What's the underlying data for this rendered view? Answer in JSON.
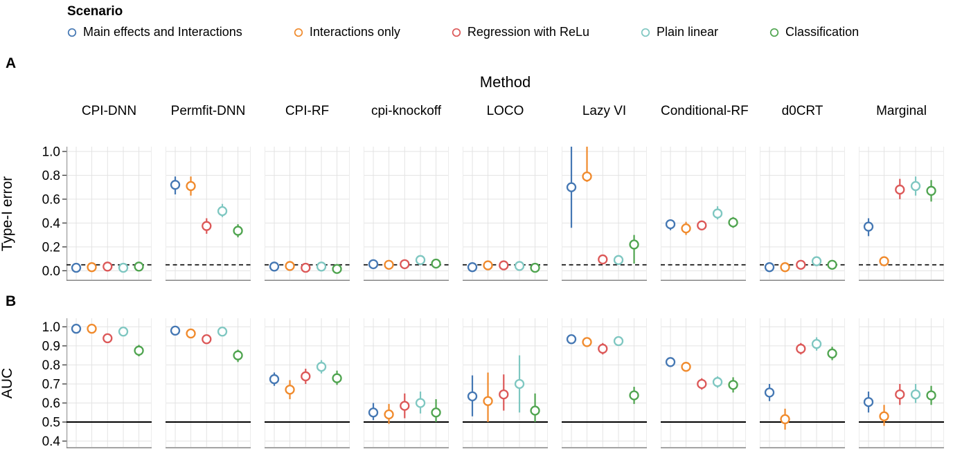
{
  "legend": {
    "title": "Scenario",
    "items": [
      {
        "label": "Main effects and Interactions",
        "color": "#4477b3"
      },
      {
        "label": "Interactions only",
        "color": "#f08a2c"
      },
      {
        "label": "Regression with ReLu",
        "color": "#dc5858"
      },
      {
        "label": "Plain linear",
        "color": "#7ec7c1"
      },
      {
        "label": "Classification",
        "color": "#4fa44f"
      }
    ]
  },
  "labels": {
    "panel_a": "A",
    "panel_b": "B",
    "method_title": "Method"
  },
  "chart_data": {
    "type": "scatter",
    "note": "Open-circle point estimates with vertical error bars; values are [value, low, high]",
    "methods": [
      "CPI-DNN",
      "Permfit-DNN",
      "CPI-RF",
      "cpi-knockoff",
      "LOCO",
      "Lazy VI",
      "Conditional-RF",
      "d0CRT",
      "Marginal"
    ],
    "scenarios": [
      {
        "name": "Main effects and Interactions",
        "color": "#4477b3"
      },
      {
        "name": "Interactions only",
        "color": "#f08a2c"
      },
      {
        "name": "Regression with ReLu",
        "color": "#dc5858"
      },
      {
        "name": "Plain linear",
        "color": "#7ec7c1"
      },
      {
        "name": "Classification",
        "color": "#4fa44f"
      }
    ],
    "rows": [
      {
        "id": "A",
        "ylabel": "Type-I error",
        "yticks": [
          1.0,
          0.8,
          0.6,
          0.4,
          0.2,
          0.0
        ],
        "ylim": [
          -0.085,
          1.04
        ],
        "refline": {
          "y": 0.05,
          "style": "dashed",
          "color": "#111111"
        },
        "values": [
          [
            [
              0.025,
              0.01,
              0.04
            ],
            [
              0.03,
              0.015,
              0.045
            ],
            [
              0.035,
              0.02,
              0.05
            ],
            [
              0.025,
              0.01,
              0.04
            ],
            [
              0.035,
              0.02,
              0.05
            ]
          ],
          [
            [
              0.72,
              0.64,
              0.79
            ],
            [
              0.71,
              0.63,
              0.79
            ],
            [
              0.375,
              0.31,
              0.44
            ],
            [
              0.5,
              0.45,
              0.56
            ],
            [
              0.335,
              0.28,
              0.39
            ]
          ],
          [
            [
              0.035,
              0.02,
              0.05
            ],
            [
              0.04,
              0.025,
              0.055
            ],
            [
              0.025,
              0.01,
              0.04
            ],
            [
              0.035,
              0.02,
              0.05
            ],
            [
              0.015,
              0.005,
              0.03
            ]
          ],
          [
            [
              0.055,
              0.04,
              0.07
            ],
            [
              0.05,
              0.035,
              0.065
            ],
            [
              0.055,
              0.04,
              0.075
            ],
            [
              0.09,
              0.07,
              0.11
            ],
            [
              0.06,
              0.045,
              0.08
            ]
          ],
          [
            [
              0.03,
              0.015,
              0.045
            ],
            [
              0.045,
              0.03,
              0.06
            ],
            [
              0.045,
              0.03,
              0.065
            ],
            [
              0.04,
              0.025,
              0.055
            ],
            [
              0.025,
              0.01,
              0.04
            ]
          ],
          [
            [
              0.7,
              0.36,
              1.1
            ],
            [
              0.79,
              0.745,
              1.1
            ],
            [
              0.095,
              0.06,
              0.13
            ],
            [
              0.09,
              0.06,
              0.12
            ],
            [
              0.22,
              0.06,
              0.3
            ]
          ],
          [
            [
              0.39,
              0.34,
              0.43
            ],
            [
              0.355,
              0.3,
              0.41
            ],
            [
              0.38,
              0.34,
              0.42
            ],
            [
              0.48,
              0.43,
              0.54
            ],
            [
              0.405,
              0.36,
              0.45
            ]
          ],
          [
            [
              0.03,
              0.015,
              0.045
            ],
            [
              0.03,
              0.015,
              0.045
            ],
            [
              0.05,
              0.035,
              0.065
            ],
            [
              0.08,
              0.06,
              0.1
            ],
            [
              0.05,
              0.035,
              0.065
            ]
          ],
          [
            [
              0.37,
              0.29,
              0.44
            ],
            [
              0.08,
              0.06,
              0.1
            ],
            [
              0.68,
              0.6,
              0.77
            ],
            [
              0.71,
              0.63,
              0.79
            ],
            [
              0.67,
              0.58,
              0.76
            ]
          ]
        ]
      },
      {
        "id": "B",
        "ylabel": "AUC",
        "yticks": [
          1.0,
          0.9,
          0.8,
          0.7,
          0.6,
          0.5,
          0.4
        ],
        "ylim": [
          0.362,
          1.045
        ],
        "refline": {
          "y": 0.5,
          "style": "solid",
          "color": "#000000"
        },
        "values": [
          [
            [
              0.99,
              0.98,
              1.0
            ],
            [
              0.99,
              0.975,
              1.0
            ],
            [
              0.94,
              0.92,
              0.96
            ],
            [
              0.975,
              0.96,
              0.99
            ],
            [
              0.875,
              0.845,
              0.905
            ]
          ],
          [
            [
              0.98,
              0.97,
              0.99
            ],
            [
              0.965,
              0.95,
              0.98
            ],
            [
              0.935,
              0.915,
              0.955
            ],
            [
              0.975,
              0.965,
              0.985
            ],
            [
              0.85,
              0.815,
              0.88
            ]
          ],
          [
            [
              0.725,
              0.69,
              0.76
            ],
            [
              0.67,
              0.62,
              0.72
            ],
            [
              0.74,
              0.7,
              0.78
            ],
            [
              0.79,
              0.755,
              0.825
            ],
            [
              0.73,
              0.695,
              0.77
            ]
          ],
          [
            [
              0.55,
              0.51,
              0.6
            ],
            [
              0.54,
              0.49,
              0.595
            ],
            [
              0.585,
              0.52,
              0.65
            ],
            [
              0.6,
              0.545,
              0.66
            ],
            [
              0.55,
              0.5,
              0.62
            ]
          ],
          [
            [
              0.635,
              0.53,
              0.745
            ],
            [
              0.61,
              0.5,
              0.76
            ],
            [
              0.645,
              0.56,
              0.75
            ],
            [
              0.7,
              0.55,
              0.85
            ],
            [
              0.56,
              0.5,
              0.65
            ]
          ],
          [
            [
              0.935,
              0.92,
              0.95
            ],
            [
              0.92,
              0.9,
              0.945
            ],
            [
              0.885,
              0.855,
              0.915
            ],
            [
              0.925,
              0.905,
              0.945
            ],
            [
              0.64,
              0.595,
              0.685
            ]
          ],
          [
            [
              0.815,
              0.79,
              0.84
            ],
            [
              0.79,
              0.765,
              0.815
            ],
            [
              0.7,
              0.67,
              0.73
            ],
            [
              0.71,
              0.68,
              0.74
            ],
            [
              0.695,
              0.655,
              0.735
            ]
          ],
          [
            [
              0.655,
              0.61,
              0.7
            ],
            [
              0.515,
              0.46,
              0.57
            ],
            [
              0.885,
              0.855,
              0.915
            ],
            [
              0.91,
              0.875,
              0.945
            ],
            [
              0.86,
              0.825,
              0.895
            ]
          ],
          [
            [
              0.605,
              0.55,
              0.66
            ],
            [
              0.53,
              0.48,
              0.59
            ],
            [
              0.645,
              0.59,
              0.7
            ],
            [
              0.645,
              0.6,
              0.7
            ],
            [
              0.64,
              0.59,
              0.69
            ]
          ]
        ]
      }
    ]
  }
}
